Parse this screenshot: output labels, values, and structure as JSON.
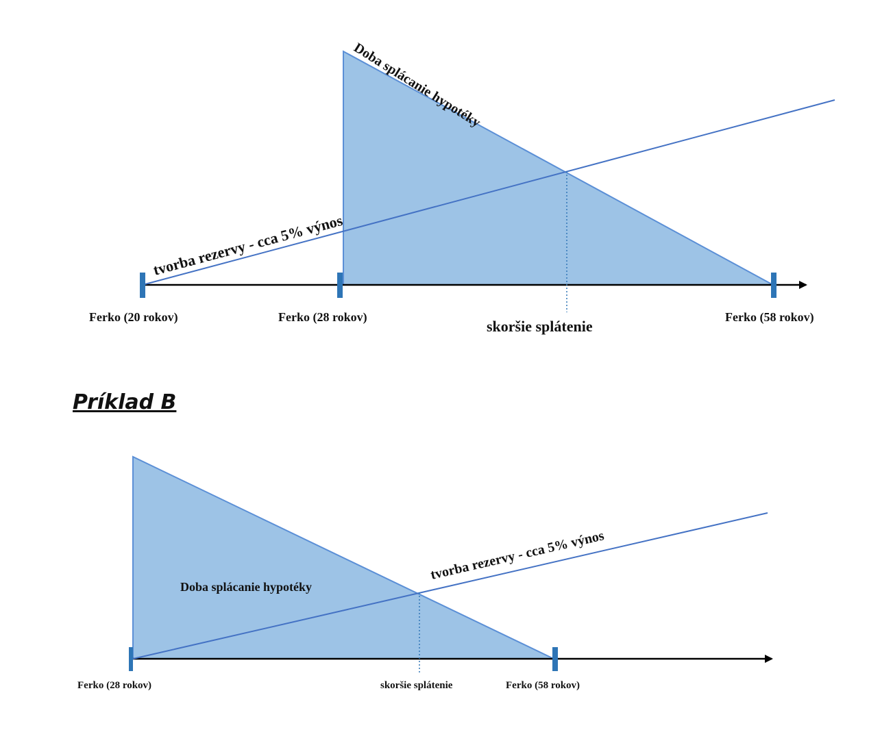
{
  "colors": {
    "fill": "#9dc3e6",
    "outline": "#5b8fd6",
    "trend_line": "#4472c4",
    "axis": "#000000",
    "marker": "#2e75b6",
    "dotted": "#2e75b6"
  },
  "diagram_a": {
    "triangle_label": "Doba splácanie hypotéky",
    "line_label": "tvorba rezervy - cca 5% výnos",
    "markers": {
      "start": "Ferko (20 rokov)",
      "mortgage_start": "Ferko (28 rokov)",
      "end": "Ferko (58 rokov)"
    },
    "intersection_label": "skoršie splátenie"
  },
  "example_b_heading": "Príklad B",
  "diagram_b": {
    "triangle_label": "Doba splácanie hypotéky",
    "line_label": "tvorba rezervy - cca 5% výnos",
    "markers": {
      "start": "Ferko (28 rokov)",
      "end": "Ferko (58 rokov)"
    },
    "intersection_label": "skoršie splátenie"
  }
}
